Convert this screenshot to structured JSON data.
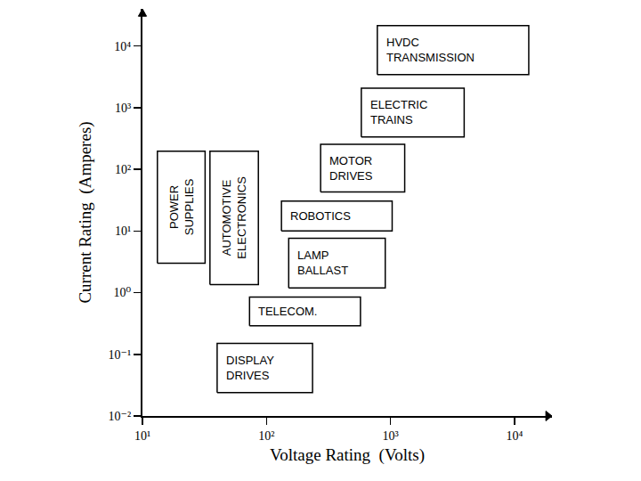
{
  "chart_data": {
    "type": "box_map",
    "x_label": "Voltage Rating  (Volts)",
    "y_label": "Current Rating  (Amperes)",
    "log": true,
    "grid": false,
    "color": "#000000",
    "xlim": [
      10,
      20000
    ],
    "ylim": [
      0.01,
      40000
    ],
    "xticks": [
      {
        "value": 10,
        "label": "10¹"
      },
      {
        "value": 100,
        "label": "10²"
      },
      {
        "value": 1000,
        "label": "10³"
      },
      {
        "value": 10000,
        "label": "10⁴"
      }
    ],
    "yticks": [
      {
        "value": 0.01,
        "label": "10⁻²"
      },
      {
        "value": 0.1,
        "label": "10⁻¹"
      },
      {
        "value": 1,
        "label": "10⁰"
      },
      {
        "value": 10,
        "label": "10¹"
      },
      {
        "value": 100,
        "label": "10²"
      },
      {
        "value": 1000,
        "label": "10³"
      },
      {
        "value": 10000,
        "label": "10⁴"
      }
    ],
    "boxes": [
      {
        "label": [
          "HVDC",
          "TRANSMISSION"
        ],
        "x": [
          782,
          13000
        ],
        "y": [
          3440,
          21500
        ]
      },
      {
        "label": [
          "ELECTRIC",
          "TRAINS"
        ],
        "x": [
          581,
          3920
        ],
        "y": [
          335,
          2070
        ]
      },
      {
        "label": [
          "MOTOR",
          "DRIVES"
        ],
        "x": [
          273,
          1300
        ],
        "y": [
          43,
          254
        ]
      },
      {
        "label": [
          "ROBOTICS"
        ],
        "x": [
          132,
          1030
        ],
        "y": [
          10,
          30.5
        ]
      },
      {
        "label": [
          "LAMP",
          "BALLAST"
        ],
        "x": [
          151,
          906
        ],
        "y": [
          1.19,
          7.6
        ]
      },
      {
        "label": [
          "TELECOM."
        ],
        "x": [
          73,
          572
        ],
        "y": [
          0.29,
          0.85
        ]
      },
      {
        "label": [
          "DISPLAY",
          "DRIVES"
        ],
        "x": [
          40,
          235
        ],
        "y": [
          0.024,
          0.15
        ]
      },
      {
        "label": [
          "POWER",
          "SUPPLIES"
        ],
        "x": [
          13.2,
          32
        ],
        "y": [
          3,
          197
        ]
      },
      {
        "label": [
          "AUTOMOTIVE",
          "ELECTRONICS"
        ],
        "x": [
          35,
          86
        ],
        "y": [
          1.35,
          197
        ]
      }
    ]
  }
}
